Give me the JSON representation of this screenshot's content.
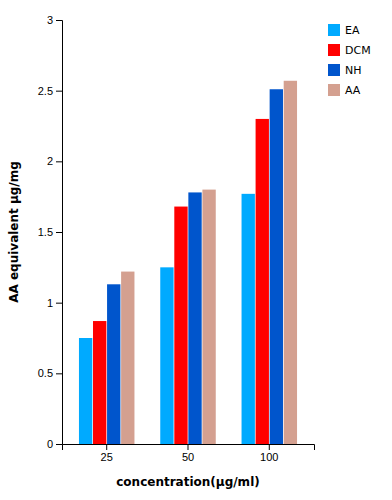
{
  "chart_data": {
    "type": "bar",
    "categories": [
      "25",
      "50",
      "100"
    ],
    "series": [
      {
        "name": "EA",
        "color": "#00AAFF",
        "values": [
          0.75,
          1.25,
          1.77
        ]
      },
      {
        "name": "DCM",
        "color": "#FF0000",
        "values": [
          0.87,
          1.68,
          2.3
        ]
      },
      {
        "name": "NH",
        "color": "#0055CC",
        "values": [
          1.13,
          1.78,
          2.51
        ]
      },
      {
        "name": "AA",
        "color": "#D4A090",
        "values": [
          1.22,
          1.8,
          2.57
        ]
      }
    ],
    "xlabel": "concentration(μg/ml)",
    "ylabel": "AA equivalent μg/mg",
    "ylim": [
      0,
      3
    ],
    "yticks": [
      0,
      0.5,
      1,
      1.5,
      2,
      2.5,
      3
    ],
    "grid": false,
    "legend": "upper right"
  }
}
